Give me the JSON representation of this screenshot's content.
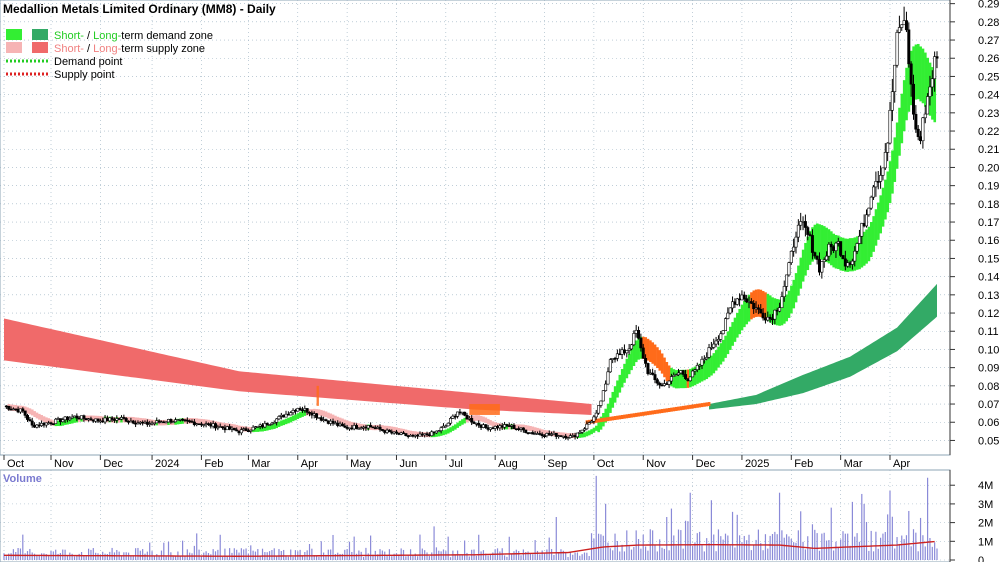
{
  "colors": {
    "short_demand": "#33ee33",
    "long_demand": "#33aa66",
    "short_supply": "#f6b4b4",
    "long_supply": "#f06a6a",
    "supply_point": "#dd2222",
    "demand_point": "#22cc22",
    "orange_zone": "#ff6b1a",
    "volume_bar": "#8a8ad8",
    "volume_avg": "#cc2222",
    "grid": "#9ab0c0",
    "legend_green_text": "#22cc22",
    "legend_red_text": "#f08080"
  },
  "chart_data": {
    "type": "candlestick",
    "title": "Medallion Metals Limited Ordinary (MM8) - Daily",
    "legend": [
      {
        "short": "Short-",
        "sep": " / ",
        "long": "Long-",
        "rest": "term demand zone"
      },
      {
        "short": "Short-",
        "sep": " / ",
        "long": "Long-",
        "rest": "term supply zone"
      },
      {
        "label": "Demand point"
      },
      {
        "label": "Supply point"
      }
    ],
    "x_labels": [
      "Oct",
      "Nov",
      "Dec",
      "2024",
      "Feb",
      "Mar",
      "Apr",
      "May",
      "Jun",
      "Jul",
      "Aug",
      "Sep",
      "Oct",
      "Nov",
      "Dec",
      "2025",
      "Feb",
      "Mar",
      "Apr"
    ],
    "x_label_positions": [
      0,
      20,
      41,
      63,
      84,
      104,
      125,
      146,
      167,
      188,
      209,
      230,
      251,
      272,
      293,
      314,
      335,
      356,
      377
    ],
    "price_axis": {
      "ticks": [
        0.05,
        0.06,
        0.07,
        0.08,
        0.09,
        0.1,
        0.11,
        0.12,
        0.13,
        0.14,
        0.15,
        0.16,
        0.17,
        0.18,
        0.19,
        0.2,
        0.21,
        0.22,
        0.23,
        0.24,
        0.25,
        0.26,
        0.27,
        0.28,
        0.29
      ],
      "tick_labels": [
        "0.05",
        "0.06",
        "0.07",
        "0.08",
        "0.09",
        "0.10",
        "0.11",
        "0.12",
        "0.13",
        "0.14",
        "0.15",
        "0.16",
        "0.17",
        "0.18",
        "0.19",
        "0.20",
        "0.21",
        "0.22",
        "0.23",
        "0.24",
        "0.25",
        "0.26",
        "0.27",
        "0.28",
        "0.29"
      ],
      "ylim": [
        0.042,
        0.292
      ]
    },
    "volume_axis": {
      "title": "Volume",
      "ticks": [
        0,
        1000000,
        2000000,
        3000000,
        4000000
      ],
      "tick_labels": [
        "0",
        "1M",
        "2M",
        "3M",
        "4M"
      ],
      "ylim": [
        0,
        4600000
      ]
    },
    "price_keypoints": [
      [
        0,
        0.069
      ],
      [
        8,
        0.066
      ],
      [
        12,
        0.058
      ],
      [
        20,
        0.06
      ],
      [
        30,
        0.063
      ],
      [
        40,
        0.061
      ],
      [
        50,
        0.062
      ],
      [
        60,
        0.059
      ],
      [
        70,
        0.061
      ],
      [
        80,
        0.06
      ],
      [
        90,
        0.058
      ],
      [
        100,
        0.055
      ],
      [
        110,
        0.058
      ],
      [
        118,
        0.063
      ],
      [
        125,
        0.068
      ],
      [
        130,
        0.066
      ],
      [
        135,
        0.062
      ],
      [
        145,
        0.057
      ],
      [
        155,
        0.058
      ],
      [
        165,
        0.054
      ],
      [
        175,
        0.052
      ],
      [
        183,
        0.054
      ],
      [
        188,
        0.058
      ],
      [
        193,
        0.066
      ],
      [
        200,
        0.06
      ],
      [
        205,
        0.057
      ],
      [
        215,
        0.058
      ],
      [
        225,
        0.054
      ],
      [
        235,
        0.053
      ],
      [
        242,
        0.052
      ],
      [
        247,
        0.057
      ],
      [
        252,
        0.064
      ],
      [
        256,
        0.08
      ],
      [
        258,
        0.096
      ],
      [
        262,
        0.097
      ],
      [
        266,
        0.101
      ],
      [
        269,
        0.11
      ],
      [
        271,
        0.1
      ],
      [
        274,
        0.088
      ],
      [
        277,
        0.083
      ],
      [
        280,
        0.08
      ],
      [
        284,
        0.084
      ],
      [
        288,
        0.088
      ],
      [
        291,
        0.084
      ],
      [
        294,
        0.088
      ],
      [
        298,
        0.095
      ],
      [
        302,
        0.104
      ],
      [
        306,
        0.111
      ],
      [
        310,
        0.126
      ],
      [
        314,
        0.13
      ],
      [
        318,
        0.125
      ],
      [
        322,
        0.12
      ],
      [
        326,
        0.117
      ],
      [
        330,
        0.125
      ],
      [
        334,
        0.145
      ],
      [
        337,
        0.165
      ],
      [
        340,
        0.168
      ],
      [
        343,
        0.16
      ],
      [
        347,
        0.145
      ],
      [
        351,
        0.155
      ],
      [
        355,
        0.158
      ],
      [
        358,
        0.148
      ],
      [
        361,
        0.15
      ],
      [
        364,
        0.162
      ],
      [
        367,
        0.175
      ],
      [
        370,
        0.192
      ],
      [
        373,
        0.197
      ],
      [
        376,
        0.215
      ],
      [
        378,
        0.242
      ],
      [
        380,
        0.27
      ],
      [
        382,
        0.28
      ],
      [
        384,
        0.276
      ],
      [
        386,
        0.243
      ],
      [
        388,
        0.22
      ],
      [
        390,
        0.215
      ],
      [
        392,
        0.233
      ],
      [
        394,
        0.245
      ],
      [
        396,
        0.258
      ]
    ],
    "long_supply_zone": {
      "x": [
        0,
        100,
        200,
        250
      ],
      "upper": [
        0.117,
        0.088,
        0.076,
        0.07
      ],
      "lower": [
        0.094,
        0.077,
        0.067,
        0.064
      ]
    },
    "long_demand_zone": {
      "x": [
        300,
        320,
        340,
        360,
        380,
        397
      ],
      "upper": [
        0.07,
        0.075,
        0.086,
        0.096,
        0.112,
        0.136
      ],
      "lower": [
        0.067,
        0.07,
        0.076,
        0.085,
        0.099,
        0.118
      ]
    },
    "orange_zones": [
      {
        "x_start": 198,
        "x_end": 211,
        "low": 0.064,
        "high": 0.07
      },
      {
        "x_start": 133,
        "x_end": 134,
        "low": 0.069,
        "high": 0.08
      }
    ],
    "volume_peaks": [
      {
        "x": 252,
        "value": 4500000
      },
      {
        "x": 377,
        "value": 3700000
      },
      {
        "x": 393,
        "value": 4400000
      },
      {
        "x": 330,
        "value": 3600000
      },
      {
        "x": 366,
        "value": 3000000
      },
      {
        "x": 282,
        "value": 2300000
      },
      {
        "x": 290,
        "value": 2100000
      },
      {
        "x": 235,
        "value": 2300000
      },
      {
        "x": 183,
        "value": 1800000
      },
      {
        "x": 232,
        "value": 1200000
      },
      {
        "x": 352,
        "value": 2800000
      }
    ],
    "volume_avg": [
      [
        0,
        250000
      ],
      [
        100,
        200000
      ],
      [
        200,
        280000
      ],
      [
        240,
        400000
      ],
      [
        255,
        700000
      ],
      [
        270,
        800000
      ],
      [
        300,
        820000
      ],
      [
        330,
        800000
      ],
      [
        345,
        620000
      ],
      [
        360,
        700000
      ],
      [
        380,
        800000
      ],
      [
        397,
        1000000
      ]
    ]
  }
}
